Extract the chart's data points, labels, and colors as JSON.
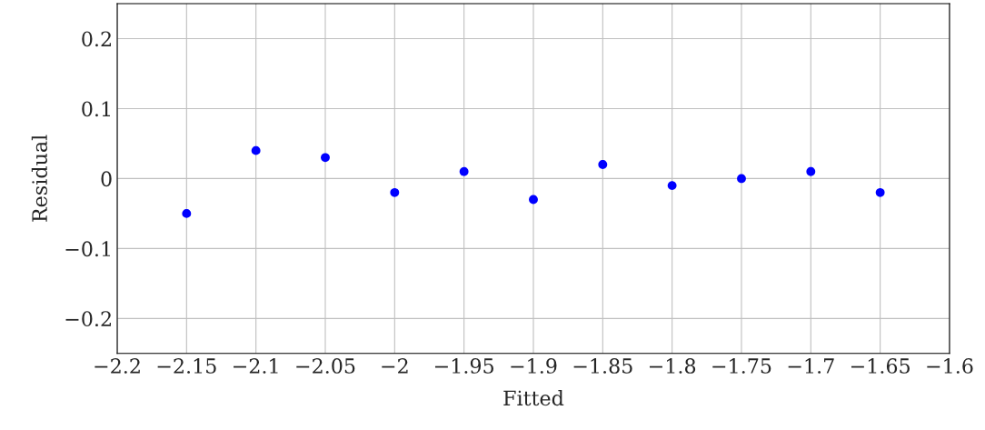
{
  "chart_data": {
    "type": "scatter",
    "xlabel": "Fitted",
    "ylabel": "Residual",
    "x": [
      -2.15,
      -2.1,
      -2.05,
      -2.0,
      -1.95,
      -1.9,
      -1.85,
      -1.8,
      -1.75,
      -1.7,
      -1.65
    ],
    "series": [
      {
        "color": "#0000ff",
        "values": [
          -0.05,
          0.04,
          0.03,
          -0.02,
          0.01,
          -0.03,
          0.02,
          -0.01,
          0,
          0.01,
          -0.02
        ]
      }
    ],
    "xlim": [
      -2.2,
      -1.6
    ],
    "xticks": [
      {
        "value": -2.2,
        "label": "−2.2"
      },
      {
        "value": -2.15,
        "label": "−2.15"
      },
      {
        "value": -2.1,
        "label": "−2.1"
      },
      {
        "value": -2.05,
        "label": "−2.05"
      },
      {
        "value": -2.0,
        "label": "−2"
      },
      {
        "value": -1.95,
        "label": "−1.95"
      },
      {
        "value": -1.9,
        "label": "−1.9"
      },
      {
        "value": -1.85,
        "label": "−1.85"
      },
      {
        "value": -1.8,
        "label": "−1.8"
      },
      {
        "value": -1.75,
        "label": "−1.75"
      },
      {
        "value": -1.7,
        "label": "−1.7"
      },
      {
        "value": -1.65,
        "label": "−1.65"
      },
      {
        "value": -1.6,
        "label": "−1.6"
      }
    ],
    "ylim": [
      -0.25,
      0.25
    ],
    "yticks": [
      {
        "value": -0.2,
        "label": "−0.2"
      },
      {
        "value": -0.1,
        "label": "−0.1"
      },
      0,
      0.1,
      0.2
    ],
    "grid": true,
    "marker": "circle"
  }
}
